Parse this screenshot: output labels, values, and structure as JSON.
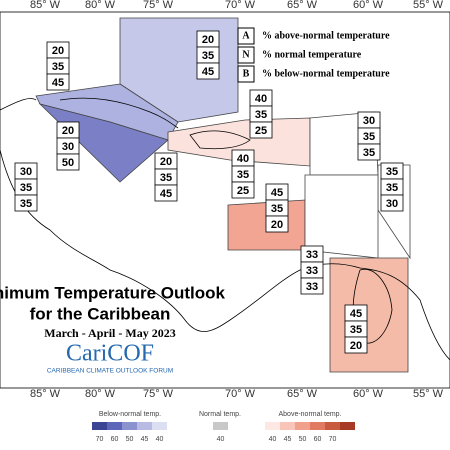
{
  "longitudes_top": [
    "85° W",
    "80° W",
    "75° W",
    "70° W",
    "65° W",
    "60° W",
    "55° W"
  ],
  "longitudes_bottom": [
    "85° W",
    "80° W",
    "75° W",
    "70° W",
    "65° W",
    "60° W",
    "55° W"
  ],
  "key": [
    {
      "letter": "A",
      "text": "% above-normal temperature"
    },
    {
      "letter": "N",
      "text": "% normal temperature"
    },
    {
      "letter": "B",
      "text": "% below-normal temperature"
    }
  ],
  "forecast_boxes": [
    [
      20,
      35,
      45
    ],
    [
      20,
      35,
      45
    ],
    [
      20,
      30,
      50
    ],
    [
      20,
      35,
      45
    ],
    [
      30,
      35,
      35
    ],
    [
      40,
      35,
      25
    ],
    [
      40,
      35,
      25
    ],
    [
      45,
      35,
      20
    ],
    [
      30,
      35,
      35
    ],
    [
      35,
      35,
      30
    ],
    [
      33,
      33,
      33
    ],
    [
      45,
      35,
      20
    ]
  ],
  "title": {
    "line1": "Minimum Temperature Outlook",
    "line2": "for the Caribbean",
    "period": "March - April - May 2023"
  },
  "logo": {
    "name": "CariCOF",
    "tagline": "CARIBBEAN CLIMATE OUTLOOK FORUM"
  },
  "legend": {
    "below": {
      "label": "Below-normal temp.",
      "ticks": [
        "70",
        "60",
        "50",
        "45",
        "40"
      ]
    },
    "normal": {
      "label": "Normal temp.",
      "ticks": [
        "40"
      ]
    },
    "above": {
      "label": "Above-normal temp.",
      "ticks": [
        "40",
        "45",
        "50",
        "60",
        "70"
      ]
    }
  }
}
